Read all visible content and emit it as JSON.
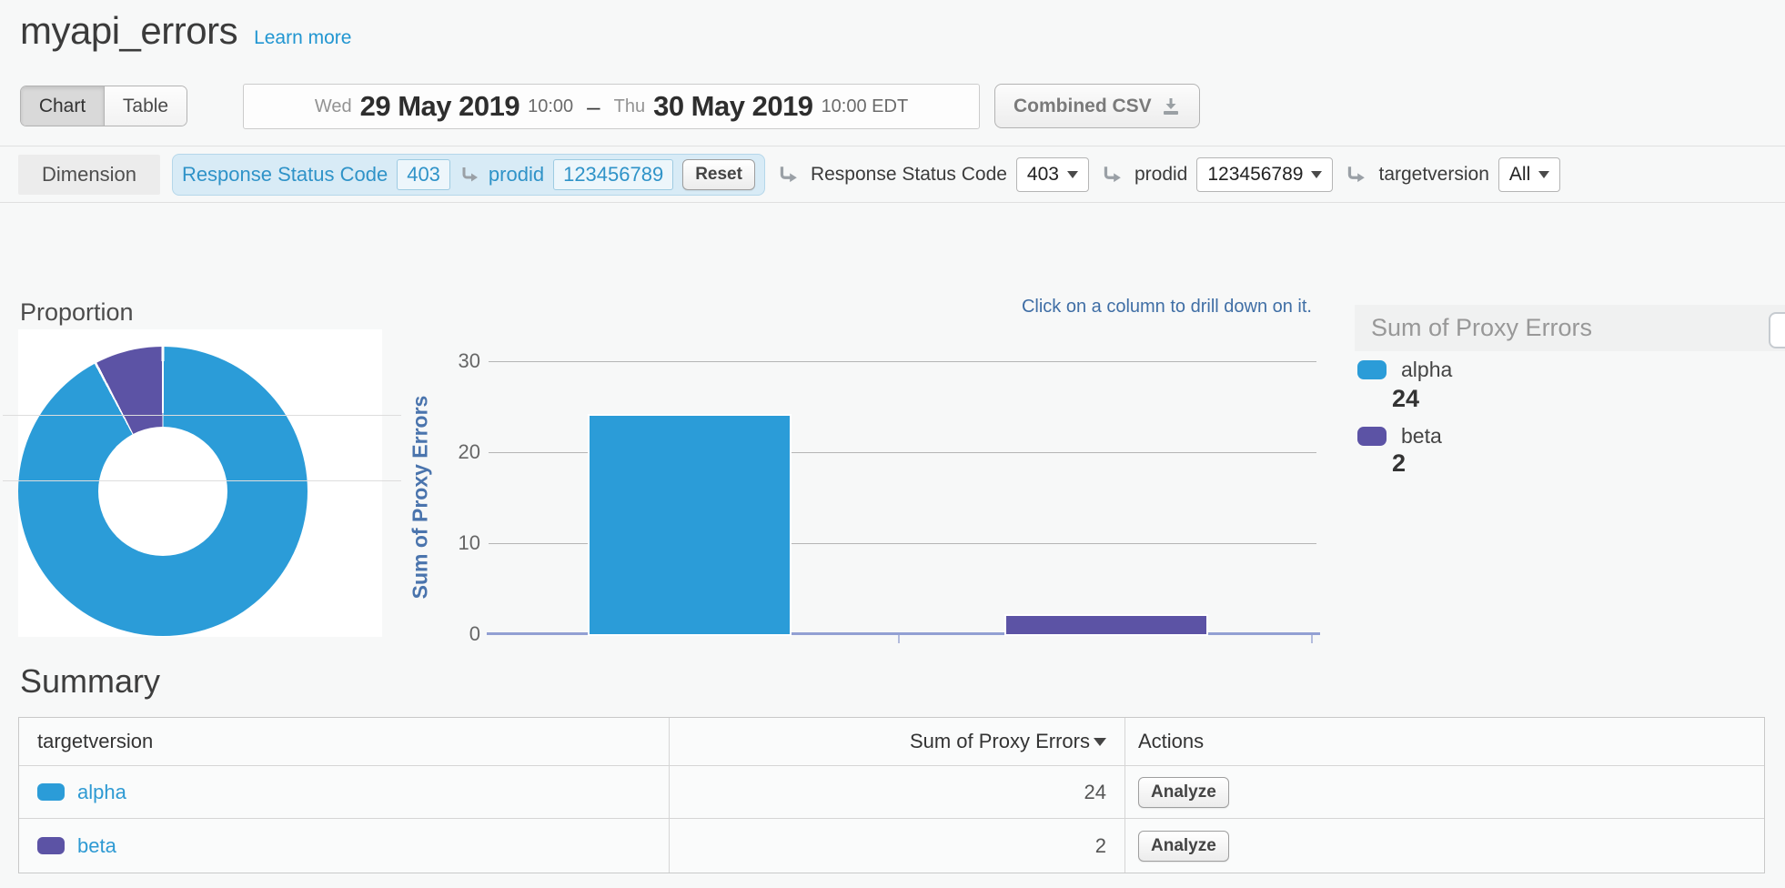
{
  "header": {
    "title": "myapi_errors",
    "learn_more": "Learn more"
  },
  "toolbar": {
    "view_toggle": {
      "chart": "Chart",
      "table": "Table",
      "active": "Chart"
    },
    "date_range": {
      "start_day": "Wed",
      "start_date": "29 May 2019",
      "start_time": "10:00",
      "separator": "–",
      "end_day": "Thu",
      "end_date": "30 May 2019",
      "end_time": "10:00 EDT"
    },
    "csv_button": "Combined CSV"
  },
  "dimension_bar": {
    "label": "Dimension",
    "drill_path": [
      {
        "name": "Response Status Code",
        "value": "403"
      },
      {
        "name": "prodid",
        "value": "123456789"
      }
    ],
    "reset": "Reset",
    "filters": [
      {
        "name": "Response Status Code",
        "value": "403"
      },
      {
        "name": "prodid",
        "value": "123456789"
      },
      {
        "name": "targetversion",
        "value": "All"
      }
    ]
  },
  "proportion_title": "Proportion",
  "drill_hint": "Click on a column to drill down on it.",
  "legend": {
    "title": "Sum of Proxy Errors",
    "items": [
      {
        "label": "alpha",
        "value": "24",
        "color": "#2b9cd8"
      },
      {
        "label": "beta",
        "value": "2",
        "color": "#5c53a5"
      }
    ]
  },
  "chart_data": [
    {
      "type": "pie",
      "donut": true,
      "title": "Proportion",
      "labels": [
        "alpha",
        "beta"
      ],
      "values": [
        24,
        2
      ],
      "colors": [
        "#2b9cd8",
        "#5c53a5"
      ]
    },
    {
      "type": "bar",
      "categories": [
        "alpha",
        "beta"
      ],
      "values": [
        24,
        2
      ],
      "title": "",
      "xlabel": "",
      "ylabel": "Sum of Proxy Errors",
      "yticks": [
        30,
        20,
        10,
        0
      ],
      "ylim": [
        0,
        32
      ],
      "grid": true,
      "legend_position": "right",
      "colors": [
        "#2b9cd8",
        "#5c53a5"
      ]
    }
  ],
  "summary": {
    "title": "Summary",
    "columns": [
      "targetversion",
      "Sum of Proxy Errors",
      "Actions"
    ],
    "rows": [
      {
        "label": "alpha",
        "color": "#2b9cd8",
        "value": "24",
        "action": "Analyze"
      },
      {
        "label": "beta",
        "color": "#5c53a5",
        "value": "2",
        "action": "Analyze"
      }
    ]
  },
  "colors": {
    "accent_blue": "#2b9cd8",
    "accent_purple": "#5c53a5",
    "link_blue": "#2196d1",
    "hint_blue": "#3f6ea5",
    "axis_line": "#92a0d3"
  }
}
